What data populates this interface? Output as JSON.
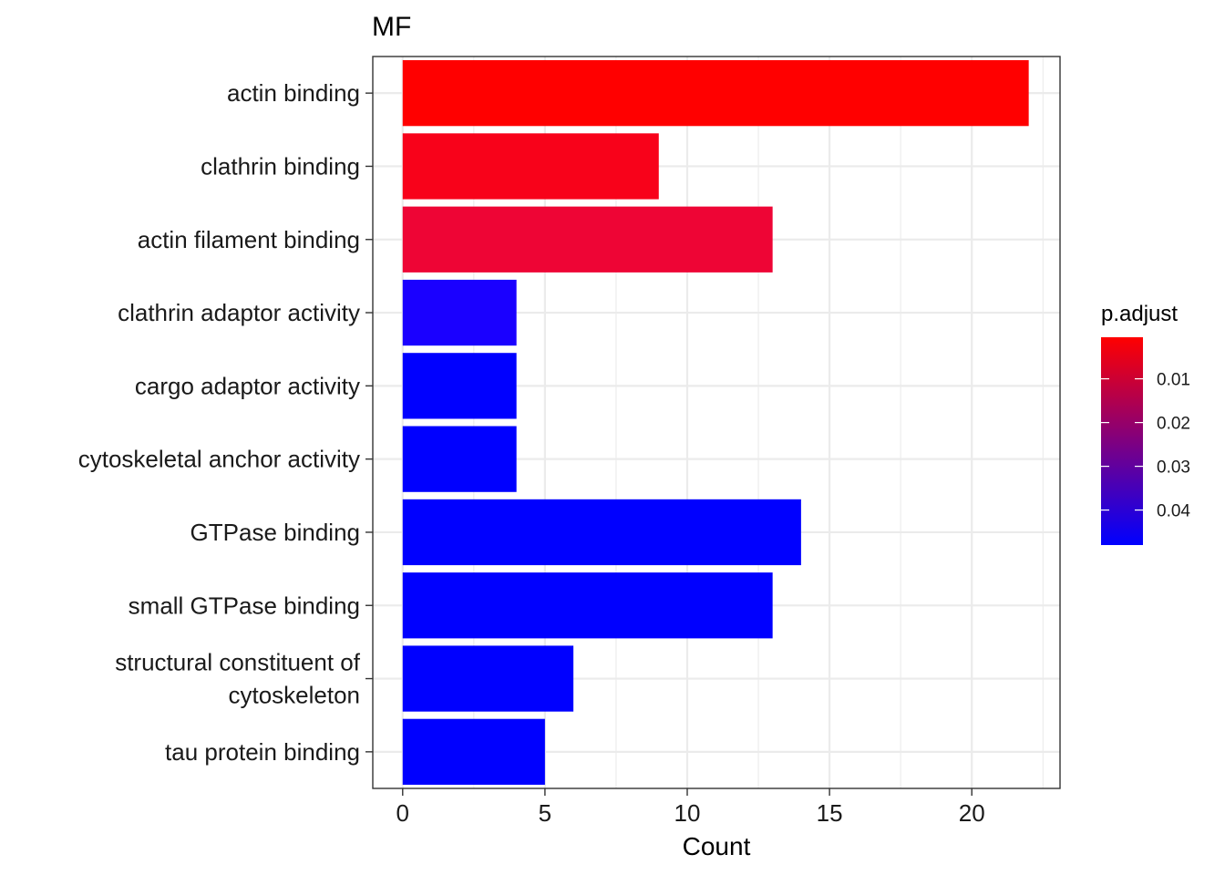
{
  "chart_data": {
    "type": "bar",
    "orientation": "horizontal",
    "title": "MF",
    "xlabel": "Count",
    "ylabel": "",
    "xlim": [
      -1.05,
      23.1
    ],
    "xticks": [
      0,
      5,
      10,
      15,
      20
    ],
    "grid": true,
    "categories": [
      [
        "actin binding"
      ],
      [
        "clathrin binding"
      ],
      [
        "actin filament binding"
      ],
      [
        "clathrin adaptor activity"
      ],
      [
        "cargo adaptor activity"
      ],
      [
        "cytoskeletal anchor activity"
      ],
      [
        "GTPase binding"
      ],
      [
        "small GTPase binding"
      ],
      [
        "structural constituent of",
        "cytoskeleton"
      ],
      [
        "tau protein binding"
      ]
    ],
    "values": [
      22,
      9,
      13,
      4,
      4,
      4,
      14,
      13,
      6,
      5
    ],
    "p_adjust": [
      0.0005,
      0.002,
      0.005,
      0.045,
      0.048,
      0.048,
      0.048,
      0.048,
      0.048,
      0.048
    ],
    "colors": [
      "#FF0000",
      "#F8021A",
      "#EE0535",
      "#1A00FF",
      "#0000FF",
      "#0000FF",
      "#0000FF",
      "#0000FF",
      "#0000FF",
      "#0000FF"
    ],
    "legend": {
      "title": "p.adjust",
      "placement": "right",
      "range": [
        0.0005,
        0.048
      ],
      "ticks": [
        0.01,
        0.02,
        0.03,
        0.04
      ],
      "tick_labels": [
        "0.01",
        "0.02",
        "0.03",
        "0.04"
      ],
      "color_low": "#FF0000",
      "color_high": "#0000FF"
    }
  }
}
